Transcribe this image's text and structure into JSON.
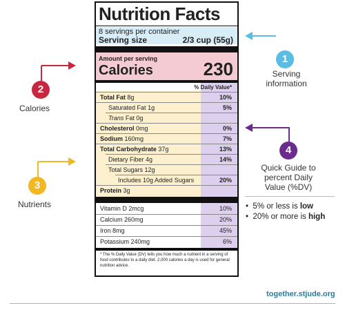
{
  "label": {
    "title": "Nutrition Facts",
    "servings": "8 servings per container",
    "serving_size_label": "Serving size",
    "serving_size_value": "2/3 cup (55g)",
    "amount_per_serving": "Amount per serving",
    "calories_label": "Calories",
    "calories_value": "230",
    "dv_header": "% Daily Value*",
    "nutrients": [
      {
        "name": "Total Fat",
        "amount": "8g",
        "dv": "10%"
      },
      {
        "name": "Saturated Fat",
        "amount": "1g",
        "dv": "5%"
      },
      {
        "name": "Trans",
        "amount": "Fat 0g",
        "dv": ""
      },
      {
        "name": "Cholesterol",
        "amount": "0mg",
        "dv": "0%"
      },
      {
        "name": "Sodium",
        "amount": "160mg",
        "dv": "7%"
      },
      {
        "name": "Total Carbohydrate",
        "amount": "37g",
        "dv": "13%"
      },
      {
        "name": "Dietary Fiber",
        "amount": "4g",
        "dv": "14%"
      },
      {
        "name": "Total Sugars",
        "amount": "12g",
        "dv": ""
      },
      {
        "name": "Includes 10g Added Sugars",
        "amount": "",
        "dv": "20%"
      },
      {
        "name": "Protein",
        "amount": "3g",
        "dv": ""
      }
    ],
    "vitamins": [
      {
        "name": "Vitamin D 2mcg",
        "dv": "10%"
      },
      {
        "name": "Calcium 260mg",
        "dv": "20%"
      },
      {
        "name": "Iron 8mg",
        "dv": "45%"
      },
      {
        "name": "Potassium 240mg",
        "dv": "6%"
      }
    ],
    "footnote": "* The % Daily Value (DV) tells you how much a nutrient in a serving of food contributes to a daily diet. 2,000 calories a day is used for general nutrition advice."
  },
  "annotations": [
    {
      "number": "1",
      "text": "Serving information",
      "color": "#5bbde4"
    },
    {
      "number": "2",
      "text": "Calories",
      "color": "#c8283f"
    },
    {
      "number": "3",
      "text": "Nutrients",
      "color": "#f2b824"
    },
    {
      "number": "4",
      "text": "Quick Guide to percent Daily Value (%DV)",
      "color": "#6b2c8f"
    }
  ],
  "guide": {
    "b1_pre": "5% or less is ",
    "b1_bold": "low",
    "b2_pre": "20% or more is ",
    "b2_bold": "high"
  },
  "footer": {
    "url": "together.stjude.org"
  },
  "colors": {
    "serving_bg": "#d7edf8",
    "calories_bg": "#f4cbd3",
    "nutrients_bg": "#fdf0cf",
    "dv_col": "#dcd0ee"
  }
}
